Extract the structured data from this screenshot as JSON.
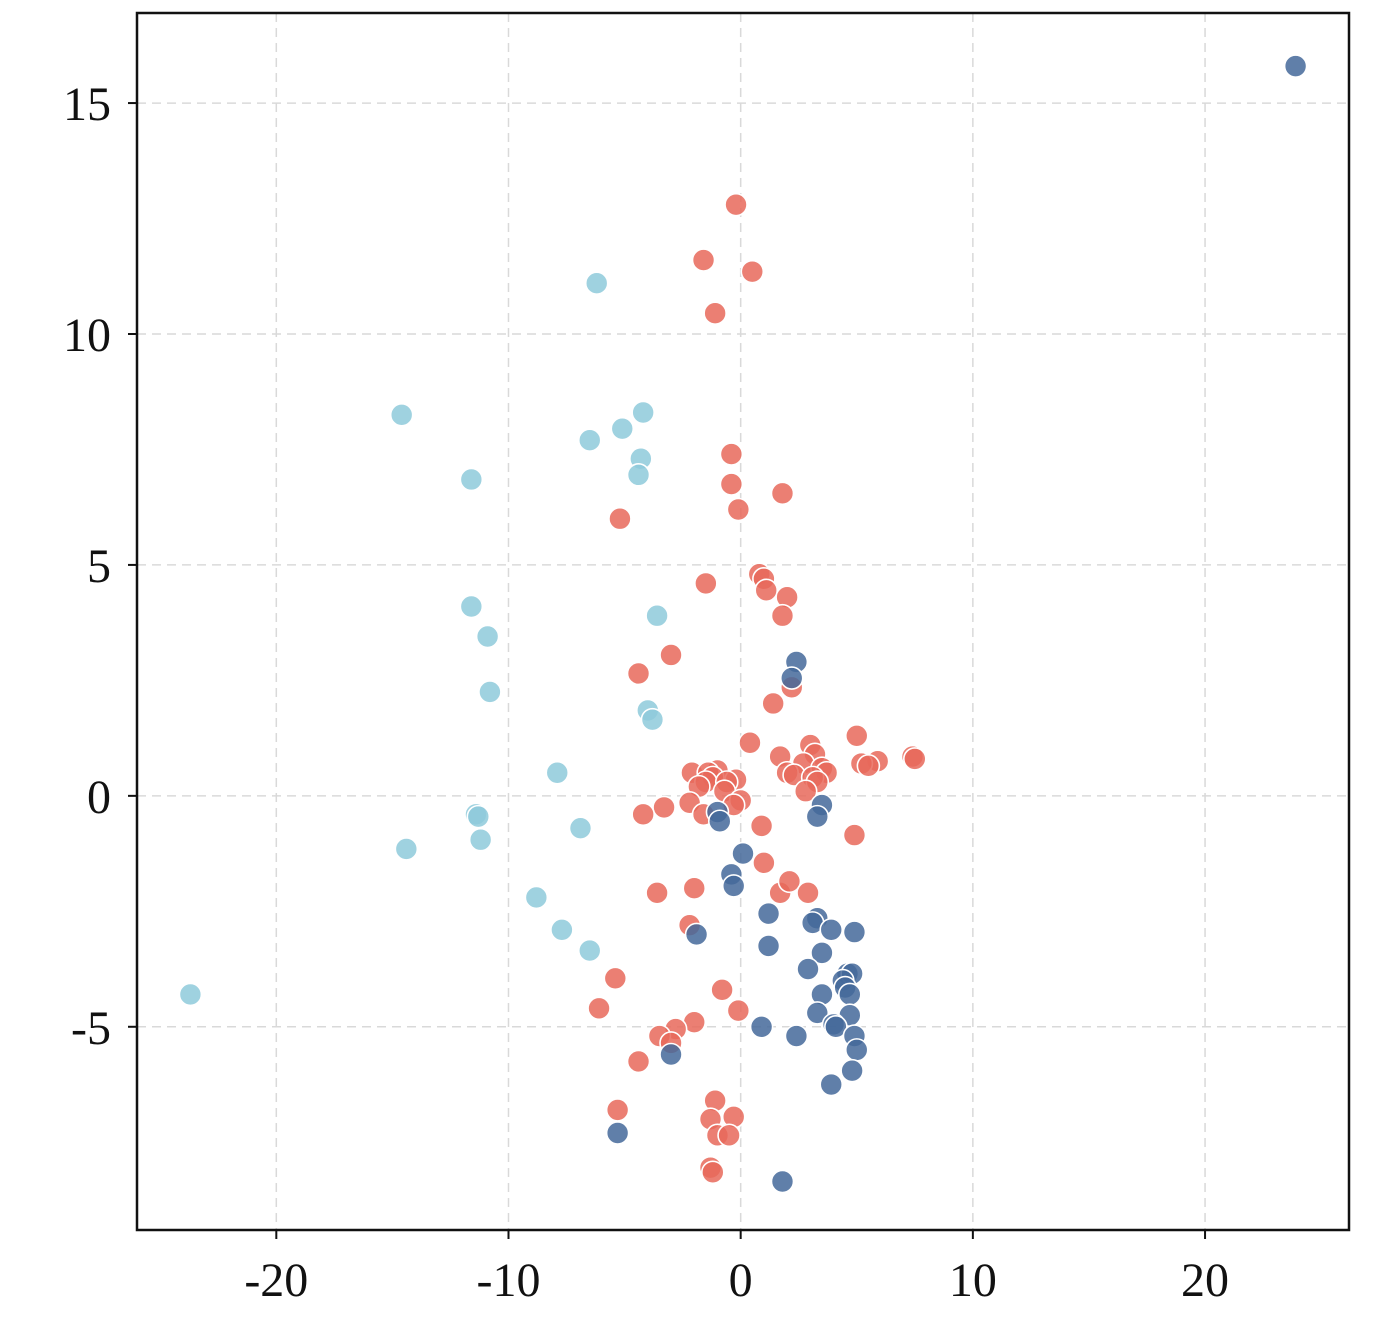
{
  "chart_data": {
    "type": "scatter",
    "title": "",
    "xlabel": "",
    "ylabel": "",
    "xlim": [
      -26,
      26.2
    ],
    "ylim": [
      -9.4,
      16.95
    ],
    "xticks": [
      -20,
      -10,
      0,
      10,
      20
    ],
    "yticks": [
      -5,
      0,
      5,
      10,
      15
    ],
    "xtick_labels": [
      "-20",
      "-10",
      "0",
      "10",
      "20"
    ],
    "ytick_labels": [
      "-5",
      "0",
      "5",
      "10",
      "15"
    ],
    "grid": true,
    "legend": "none",
    "series": [
      {
        "color": "#8ecadb",
        "points": [
          [
            -6.2,
            11.1
          ],
          [
            -14.6,
            8.25
          ],
          [
            -4.2,
            8.3
          ],
          [
            -6.5,
            7.7
          ],
          [
            -5.1,
            7.95
          ],
          [
            -4.3,
            7.3
          ],
          [
            -4.4,
            6.95
          ],
          [
            -11.6,
            6.85
          ],
          [
            -11.6,
            4.1
          ],
          [
            -10.9,
            3.45
          ],
          [
            -3.6,
            3.9
          ],
          [
            -10.8,
            2.25
          ],
          [
            -4.0,
            1.85
          ],
          [
            -3.8,
            1.65
          ],
          [
            -7.9,
            0.5
          ],
          [
            -11.4,
            -0.4
          ],
          [
            -11.3,
            -0.45
          ],
          [
            -6.9,
            -0.7
          ],
          [
            -11.2,
            -0.95
          ],
          [
            -14.4,
            -1.15
          ],
          [
            -8.8,
            -2.2
          ],
          [
            -7.7,
            -2.9
          ],
          [
            -6.5,
            -3.35
          ],
          [
            -23.7,
            -4.3
          ]
        ]
      },
      {
        "color": "#e8685a",
        "points": [
          [
            -0.2,
            12.8
          ],
          [
            -1.6,
            11.6
          ],
          [
            0.5,
            11.35
          ],
          [
            -1.1,
            10.45
          ],
          [
            -0.4,
            7.4
          ],
          [
            -0.4,
            6.75
          ],
          [
            1.8,
            6.55
          ],
          [
            -0.1,
            6.2
          ],
          [
            -5.2,
            6.0
          ],
          [
            0.8,
            4.8
          ],
          [
            1.0,
            4.7
          ],
          [
            1.1,
            4.45
          ],
          [
            -1.5,
            4.6
          ],
          [
            2.0,
            4.3
          ],
          [
            1.8,
            3.9
          ],
          [
            -3.0,
            3.05
          ],
          [
            -4.4,
            2.65
          ],
          [
            2.2,
            2.35
          ],
          [
            1.4,
            2.0
          ],
          [
            5.0,
            1.3
          ],
          [
            0.4,
            1.15
          ],
          [
            3.0,
            1.1
          ],
          [
            3.2,
            0.9
          ],
          [
            7.4,
            0.85
          ],
          [
            1.7,
            0.85
          ],
          [
            7.5,
            0.8
          ],
          [
            5.9,
            0.75
          ],
          [
            5.2,
            0.7
          ],
          [
            5.5,
            0.65
          ],
          [
            2.7,
            0.7
          ],
          [
            3.5,
            0.6
          ],
          [
            2.0,
            0.5
          ],
          [
            -2.1,
            0.5
          ],
          [
            -1.0,
            0.55
          ],
          [
            -1.4,
            0.5
          ],
          [
            -1.2,
            0.4
          ],
          [
            3.7,
            0.5
          ],
          [
            2.3,
            0.45
          ],
          [
            3.1,
            0.4
          ],
          [
            -0.2,
            0.35
          ],
          [
            -1.5,
            0.3
          ],
          [
            3.3,
            0.3
          ],
          [
            2.8,
            0.1
          ],
          [
            -0.6,
            0.3
          ],
          [
            -0.7,
            0.1
          ],
          [
            -1.8,
            0.2
          ],
          [
            0.0,
            -0.1
          ],
          [
            -0.3,
            -0.2
          ],
          [
            -2.2,
            -0.15
          ],
          [
            -3.3,
            -0.25
          ],
          [
            -1.6,
            -0.4
          ],
          [
            -4.2,
            -0.4
          ],
          [
            4.9,
            -0.85
          ],
          [
            0.9,
            -0.65
          ],
          [
            1.0,
            -1.45
          ],
          [
            -2.0,
            -2.0
          ],
          [
            -3.6,
            -2.1
          ],
          [
            1.7,
            -2.1
          ],
          [
            2.1,
            -1.85
          ],
          [
            2.9,
            -2.1
          ],
          [
            -2.2,
            -2.8
          ],
          [
            -5.4,
            -3.95
          ],
          [
            -0.8,
            -4.2
          ],
          [
            -6.1,
            -4.6
          ],
          [
            -0.1,
            -4.65
          ],
          [
            -2.0,
            -4.9
          ],
          [
            -2.8,
            -5.05
          ],
          [
            -3.5,
            -5.2
          ],
          [
            -3.0,
            -5.35
          ],
          [
            -4.4,
            -5.75
          ],
          [
            -1.1,
            -6.6
          ],
          [
            -5.3,
            -6.8
          ],
          [
            -1.3,
            -7.0
          ],
          [
            -0.3,
            -6.95
          ],
          [
            -1.0,
            -7.35
          ],
          [
            -0.5,
            -7.35
          ],
          [
            -1.3,
            -8.05
          ],
          [
            -1.2,
            -8.15
          ]
        ]
      },
      {
        "color": "#44699a",
        "points": [
          [
            23.9,
            15.8
          ],
          [
            2.4,
            2.9
          ],
          [
            2.2,
            2.55
          ],
          [
            3.5,
            -0.2
          ],
          [
            3.3,
            -0.45
          ],
          [
            -1.0,
            -0.35
          ],
          [
            -0.9,
            -0.55
          ],
          [
            0.1,
            -1.25
          ],
          [
            -0.4,
            -1.7
          ],
          [
            -0.3,
            -1.95
          ],
          [
            3.3,
            -2.65
          ],
          [
            3.1,
            -2.75
          ],
          [
            1.2,
            -2.55
          ],
          [
            3.9,
            -2.9
          ],
          [
            4.9,
            -2.95
          ],
          [
            -1.9,
            -3.0
          ],
          [
            1.2,
            -3.25
          ],
          [
            3.5,
            -3.4
          ],
          [
            2.9,
            -3.75
          ],
          [
            4.6,
            -3.85
          ],
          [
            4.8,
            -3.85
          ],
          [
            4.4,
            -4.0
          ],
          [
            4.5,
            -4.15
          ],
          [
            3.5,
            -4.3
          ],
          [
            4.7,
            -4.3
          ],
          [
            3.3,
            -4.7
          ],
          [
            4.7,
            -4.75
          ],
          [
            4.0,
            -4.95
          ],
          [
            4.1,
            -5.0
          ],
          [
            0.9,
            -5.0
          ],
          [
            2.4,
            -5.2
          ],
          [
            4.9,
            -5.2
          ],
          [
            5.0,
            -5.5
          ],
          [
            -3.0,
            -5.6
          ],
          [
            4.8,
            -5.95
          ],
          [
            3.9,
            -6.25
          ],
          [
            -5.3,
            -7.3
          ],
          [
            1.8,
            -8.35
          ]
        ]
      }
    ]
  }
}
